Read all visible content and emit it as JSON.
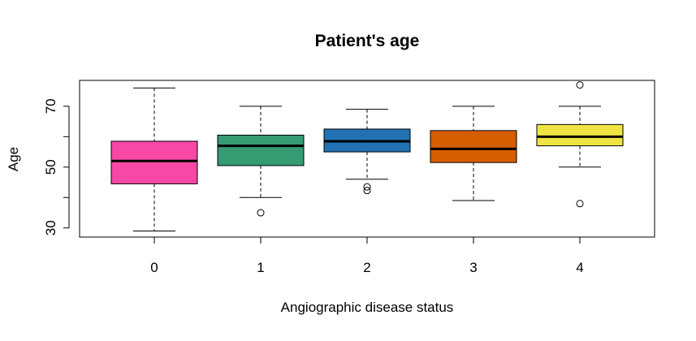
{
  "chart_data": {
    "type": "box",
    "title": "Patient's age",
    "xlabel": "Angiographic disease status",
    "ylabel": "Age",
    "categories": [
      "0",
      "1",
      "2",
      "3",
      "4"
    ],
    "ylim": [
      27,
      78.5
    ],
    "yticks": [
      30,
      50,
      70
    ],
    "yticks_minor": [
      40,
      60
    ],
    "grid": false,
    "legend": "none",
    "boxes": [
      {
        "category": "0",
        "whisker_low": 29,
        "q1": 44.5,
        "median": 52,
        "q3": 58.5,
        "whisker_high": 76,
        "outliers": [],
        "color": "#F748A5"
      },
      {
        "category": "1",
        "whisker_low": 40,
        "q1": 50.5,
        "median": 57,
        "q3": 60.5,
        "whisker_high": 70,
        "outliers": [
          35
        ],
        "color": "#359B73"
      },
      {
        "category": "2",
        "whisker_low": 46,
        "q1": 55,
        "median": 58.5,
        "q3": 62.5,
        "whisker_high": 69,
        "outliers": [
          42.3,
          43.5
        ],
        "color": "#2271B2"
      },
      {
        "category": "3",
        "whisker_low": 39,
        "q1": 51.5,
        "median": 56,
        "q3": 62,
        "whisker_high": 70,
        "outliers": [],
        "color": "#D55E00"
      },
      {
        "category": "4",
        "whisker_low": 50,
        "q1": 57,
        "median": 60,
        "q3": 64,
        "whisker_high": 70,
        "outliers": [
          38,
          77
        ],
        "color": "#F0E442"
      }
    ]
  }
}
